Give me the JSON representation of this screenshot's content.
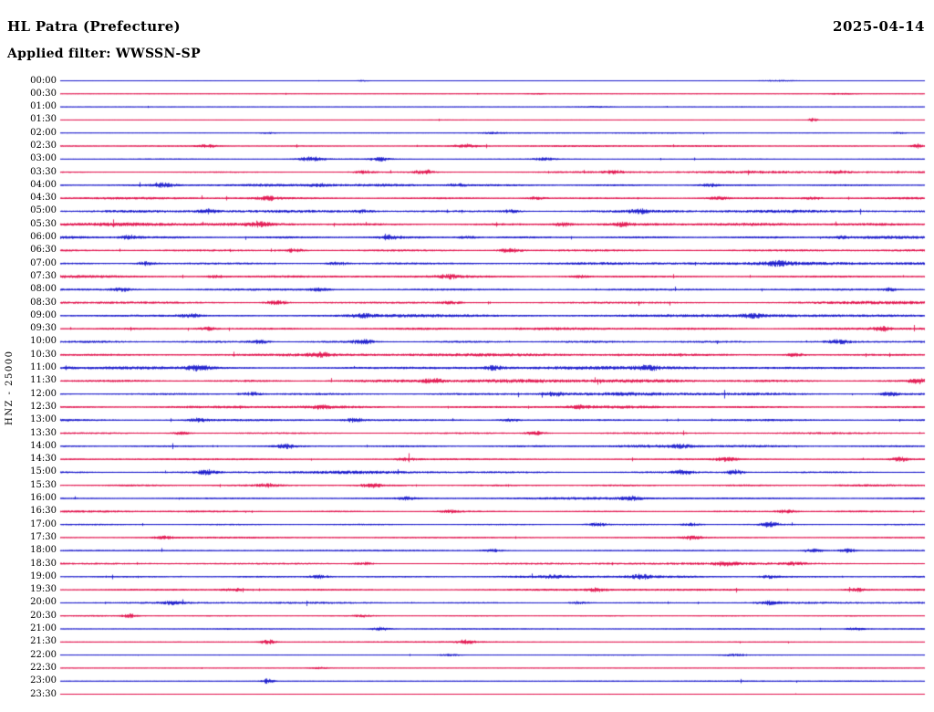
{
  "header": {
    "station_title": "HL Patra (Prefecture)",
    "date": "2025-04-14",
    "filter_label": "Applied filter: WWSSN-SP"
  },
  "y_axis_label": "HNZ - 25000",
  "palette": {
    "blue": "#0808c8",
    "red": "#e00040",
    "background": "#ffffff",
    "text": "#000000"
  },
  "chart_data": {
    "type": "line",
    "subtype": "helicorder-seismogram",
    "title": "HL Patra (Prefecture)",
    "date": "2025-04-14",
    "filter": "WWSSN-SP",
    "channel_scale_label": "HNZ - 25000",
    "row_duration_minutes": 30,
    "rows_count": 48,
    "legend_position": "none",
    "grid": false,
    "rows": [
      {
        "label": "00:00",
        "color": "blue",
        "amp": 0.5,
        "events": [
          [
            0.35,
            1.2,
            5
          ],
          [
            0.83,
            0.8,
            20
          ]
        ]
      },
      {
        "label": "00:30",
        "color": "red",
        "amp": 0.5,
        "events": [
          [
            0.55,
            0.7,
            10
          ],
          [
            0.9,
            1.0,
            14
          ]
        ]
      },
      {
        "label": "01:00",
        "color": "blue",
        "amp": 0.5,
        "events": [
          [
            0.62,
            0.8,
            12
          ]
        ]
      },
      {
        "label": "01:30",
        "color": "red",
        "amp": 0.5,
        "events": [
          [
            0.87,
            2.6,
            4
          ]
        ]
      },
      {
        "label": "02:00",
        "color": "blue",
        "amp": 0.7,
        "events": [
          [
            0.24,
            1.2,
            8
          ],
          [
            0.5,
            1.0,
            8
          ],
          [
            0.97,
            1.2,
            6
          ]
        ]
      },
      {
        "label": "02:30",
        "color": "red",
        "amp": 1.0,
        "events": [
          [
            0.17,
            1.8,
            8
          ],
          [
            0.47,
            2.2,
            9
          ],
          [
            0.99,
            2.8,
            5
          ]
        ]
      },
      {
        "label": "03:00",
        "color": "blue",
        "amp": 1.1,
        "events": [
          [
            0.29,
            2.6,
            10
          ],
          [
            0.37,
            2.2,
            8
          ],
          [
            0.56,
            1.8,
            8
          ]
        ]
      },
      {
        "label": "03:30",
        "color": "red",
        "amp": 1.4,
        "events": [
          [
            0.35,
            1.8,
            8
          ],
          [
            0.42,
            3.0,
            7
          ],
          [
            0.64,
            1.8,
            7
          ],
          [
            0.9,
            1.5,
            8
          ]
        ]
      },
      {
        "label": "04:00",
        "color": "blue",
        "amp": 1.7,
        "events": [
          [
            0.12,
            2.2,
            8
          ],
          [
            0.3,
            1.8,
            8
          ],
          [
            0.46,
            1.8,
            7
          ],
          [
            0.75,
            1.6,
            8
          ]
        ]
      },
      {
        "label": "04:30",
        "color": "red",
        "amp": 1.7,
        "events": [
          [
            0.24,
            2.2,
            8
          ],
          [
            0.55,
            1.8,
            8
          ],
          [
            0.76,
            2.2,
            8
          ],
          [
            0.87,
            1.8,
            7
          ]
        ]
      },
      {
        "label": "05:00",
        "color": "blue",
        "amp": 1.9,
        "events": [
          [
            0.17,
            2.2,
            8
          ],
          [
            0.35,
            1.8,
            8
          ],
          [
            0.52,
            1.8,
            8
          ],
          [
            0.67,
            2.2,
            8
          ]
        ]
      },
      {
        "label": "05:30",
        "color": "red",
        "amp": 1.9,
        "events": [
          [
            0.23,
            2.6,
            8
          ],
          [
            0.58,
            2.2,
            8
          ],
          [
            0.65,
            1.8,
            7
          ]
        ]
      },
      {
        "label": "06:00",
        "color": "blue",
        "amp": 2.0,
        "events": [
          [
            0.08,
            2.2,
            8
          ],
          [
            0.38,
            2.2,
            8
          ],
          [
            0.47,
            1.8,
            8
          ],
          [
            0.9,
            1.6,
            8
          ]
        ]
      },
      {
        "label": "06:30",
        "color": "red",
        "amp": 1.9,
        "events": [
          [
            0.27,
            2.2,
            8
          ],
          [
            0.52,
            2.6,
            9
          ]
        ]
      },
      {
        "label": "07:00",
        "color": "blue",
        "amp": 2.0,
        "events": [
          [
            0.1,
            2.2,
            8
          ],
          [
            0.32,
            1.8,
            8
          ],
          [
            0.83,
            2.2,
            9
          ]
        ]
      },
      {
        "label": "07:30",
        "color": "red",
        "amp": 1.9,
        "events": [
          [
            0.18,
            1.8,
            8
          ],
          [
            0.45,
            2.2,
            8
          ],
          [
            0.6,
            1.8,
            8
          ]
        ]
      },
      {
        "label": "08:00",
        "color": "blue",
        "amp": 1.9,
        "events": [
          [
            0.07,
            2.2,
            8
          ],
          [
            0.3,
            1.8,
            8
          ],
          [
            0.96,
            1.8,
            7
          ]
        ]
      },
      {
        "label": "08:30",
        "color": "red",
        "amp": 1.9,
        "events": [
          [
            0.25,
            2.6,
            9
          ],
          [
            0.45,
            1.8,
            8
          ]
        ]
      },
      {
        "label": "09:00",
        "color": "blue",
        "amp": 2.0,
        "events": [
          [
            0.15,
            2.2,
            8
          ],
          [
            0.35,
            2.2,
            8
          ],
          [
            0.8,
            2.2,
            8
          ]
        ]
      },
      {
        "label": "09:30",
        "color": "red",
        "amp": 1.9,
        "events": [
          [
            0.17,
            2.2,
            8
          ],
          [
            0.95,
            2.6,
            7
          ]
        ]
      },
      {
        "label": "10:00",
        "color": "blue",
        "amp": 2.0,
        "events": [
          [
            0.23,
            2.2,
            8
          ],
          [
            0.35,
            2.6,
            9
          ],
          [
            0.9,
            2.2,
            8
          ]
        ]
      },
      {
        "label": "10:30",
        "color": "red",
        "amp": 1.9,
        "events": [
          [
            0.3,
            2.2,
            9
          ],
          [
            0.85,
            1.8,
            8
          ]
        ]
      },
      {
        "label": "11:00",
        "color": "blue",
        "amp": 2.0,
        "events": [
          [
            0.16,
            3.0,
            9
          ],
          [
            0.5,
            2.2,
            8
          ],
          [
            0.68,
            2.2,
            8
          ]
        ]
      },
      {
        "label": "11:30",
        "color": "red",
        "amp": 2.0,
        "events": [
          [
            0.43,
            2.6,
            8
          ],
          [
            0.99,
            3.4,
            6
          ]
        ]
      },
      {
        "label": "12:00",
        "color": "blue",
        "amp": 1.9,
        "events": [
          [
            0.22,
            2.2,
            8
          ],
          [
            0.57,
            2.2,
            8
          ],
          [
            0.96,
            2.2,
            7
          ]
        ]
      },
      {
        "label": "12:30",
        "color": "red",
        "amp": 1.7,
        "events": [
          [
            0.3,
            1.8,
            8
          ],
          [
            0.6,
            1.8,
            8
          ]
        ]
      },
      {
        "label": "13:00",
        "color": "blue",
        "amp": 1.7,
        "events": [
          [
            0.16,
            2.6,
            8
          ],
          [
            0.34,
            2.2,
            8
          ],
          [
            0.52,
            1.8,
            8
          ]
        ]
      },
      {
        "label": "13:30",
        "color": "red",
        "amp": 1.7,
        "events": [
          [
            0.14,
            1.8,
            8
          ],
          [
            0.55,
            2.2,
            8
          ]
        ]
      },
      {
        "label": "14:00",
        "color": "blue",
        "amp": 1.7,
        "events": [
          [
            0.26,
            3.0,
            7
          ],
          [
            0.72,
            2.2,
            8
          ]
        ]
      },
      {
        "label": "14:30",
        "color": "red",
        "amp": 1.7,
        "events": [
          [
            0.4,
            1.8,
            8
          ],
          [
            0.77,
            2.6,
            8
          ],
          [
            0.97,
            2.6,
            6
          ]
        ]
      },
      {
        "label": "15:00",
        "color": "blue",
        "amp": 1.7,
        "events": [
          [
            0.17,
            2.6,
            7
          ],
          [
            0.72,
            2.6,
            7
          ],
          [
            0.78,
            3.0,
            7
          ]
        ]
      },
      {
        "label": "15:30",
        "color": "red",
        "amp": 1.7,
        "events": [
          [
            0.24,
            1.8,
            8
          ],
          [
            0.36,
            2.6,
            7
          ]
        ]
      },
      {
        "label": "16:00",
        "color": "blue",
        "amp": 1.4,
        "events": [
          [
            0.4,
            1.8,
            8
          ],
          [
            0.66,
            2.2,
            8
          ]
        ]
      },
      {
        "label": "16:30",
        "color": "red",
        "amp": 1.4,
        "events": [
          [
            0.45,
            2.2,
            8
          ],
          [
            0.84,
            2.2,
            8
          ]
        ]
      },
      {
        "label": "17:00",
        "color": "blue",
        "amp": 1.4,
        "events": [
          [
            0.62,
            2.2,
            8
          ],
          [
            0.73,
            2.2,
            8
          ],
          [
            0.82,
            3.0,
            7
          ]
        ]
      },
      {
        "label": "17:30",
        "color": "red",
        "amp": 1.4,
        "events": [
          [
            0.12,
            1.8,
            8
          ],
          [
            0.73,
            2.2,
            8
          ]
        ]
      },
      {
        "label": "18:00",
        "color": "blue",
        "amp": 1.4,
        "events": [
          [
            0.5,
            1.8,
            8
          ],
          [
            0.87,
            2.6,
            8
          ],
          [
            0.91,
            2.2,
            7
          ]
        ]
      },
      {
        "label": "18:30",
        "color": "red",
        "amp": 1.4,
        "events": [
          [
            0.35,
            1.8,
            8
          ],
          [
            0.77,
            2.2,
            8
          ],
          [
            0.85,
            1.8,
            8
          ]
        ]
      },
      {
        "label": "19:00",
        "color": "blue",
        "amp": 1.4,
        "events": [
          [
            0.3,
            2.2,
            8
          ],
          [
            0.57,
            1.8,
            8
          ],
          [
            0.67,
            2.6,
            8
          ],
          [
            0.82,
            1.8,
            8
          ]
        ]
      },
      {
        "label": "19:30",
        "color": "red",
        "amp": 1.3,
        "events": [
          [
            0.2,
            1.8,
            8
          ],
          [
            0.62,
            1.8,
            8
          ],
          [
            0.92,
            2.2,
            8
          ]
        ]
      },
      {
        "label": "20:00",
        "color": "blue",
        "amp": 1.2,
        "events": [
          [
            0.13,
            1.8,
            8
          ],
          [
            0.6,
            1.8,
            8
          ],
          [
            0.82,
            2.2,
            8
          ]
        ]
      },
      {
        "label": "20:30",
        "color": "red",
        "amp": 1.1,
        "events": [
          [
            0.08,
            2.2,
            6
          ],
          [
            0.35,
            1.4,
            8
          ]
        ]
      },
      {
        "label": "21:00",
        "color": "blue",
        "amp": 1.1,
        "events": [
          [
            0.37,
            2.2,
            8
          ],
          [
            0.92,
            1.8,
            8
          ]
        ]
      },
      {
        "label": "21:30",
        "color": "red",
        "amp": 0.9,
        "events": [
          [
            0.24,
            3.2,
            6
          ],
          [
            0.47,
            2.6,
            7
          ]
        ]
      },
      {
        "label": "22:00",
        "color": "blue",
        "amp": 0.8,
        "events": [
          [
            0.45,
            1.3,
            8
          ],
          [
            0.78,
            1.3,
            8
          ]
        ]
      },
      {
        "label": "22:30",
        "color": "red",
        "amp": 0.7,
        "events": [
          [
            0.3,
            1.3,
            7
          ]
        ]
      },
      {
        "label": "23:00",
        "color": "blue",
        "amp": 0.7,
        "events": [
          [
            0.24,
            3.8,
            5
          ]
        ]
      },
      {
        "label": "23:30",
        "color": "red",
        "amp": 0.5,
        "events": []
      }
    ]
  }
}
